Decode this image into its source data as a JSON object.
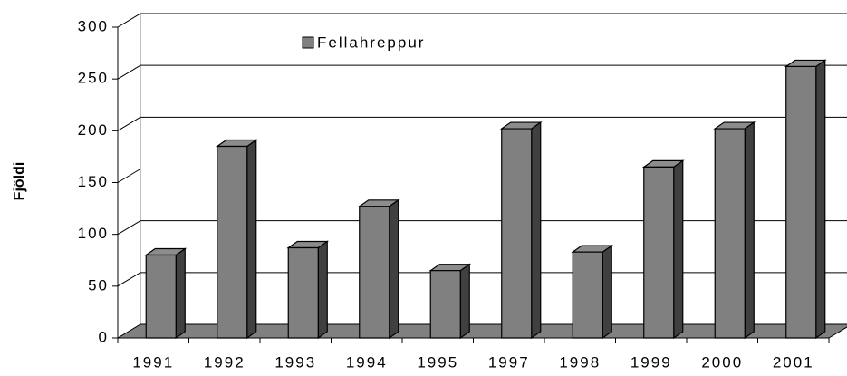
{
  "chart_data": {
    "type": "bar3d",
    "y_label": "Fjöldi",
    "categories": [
      "1991",
      "1992",
      "1993",
      "1994",
      "1995",
      "1997",
      "1998",
      "1999",
      "2000",
      "2001"
    ],
    "series": [
      {
        "name": "Fellahreppur",
        "color": "#808080",
        "values": [
          80,
          185,
          87,
          127,
          65,
          202,
          83,
          165,
          202,
          262
        ]
      }
    ],
    "ylim": [
      0,
      300
    ],
    "yticks": [
      0,
      50,
      100,
      150,
      200,
      250,
      300
    ],
    "grid": true
  }
}
